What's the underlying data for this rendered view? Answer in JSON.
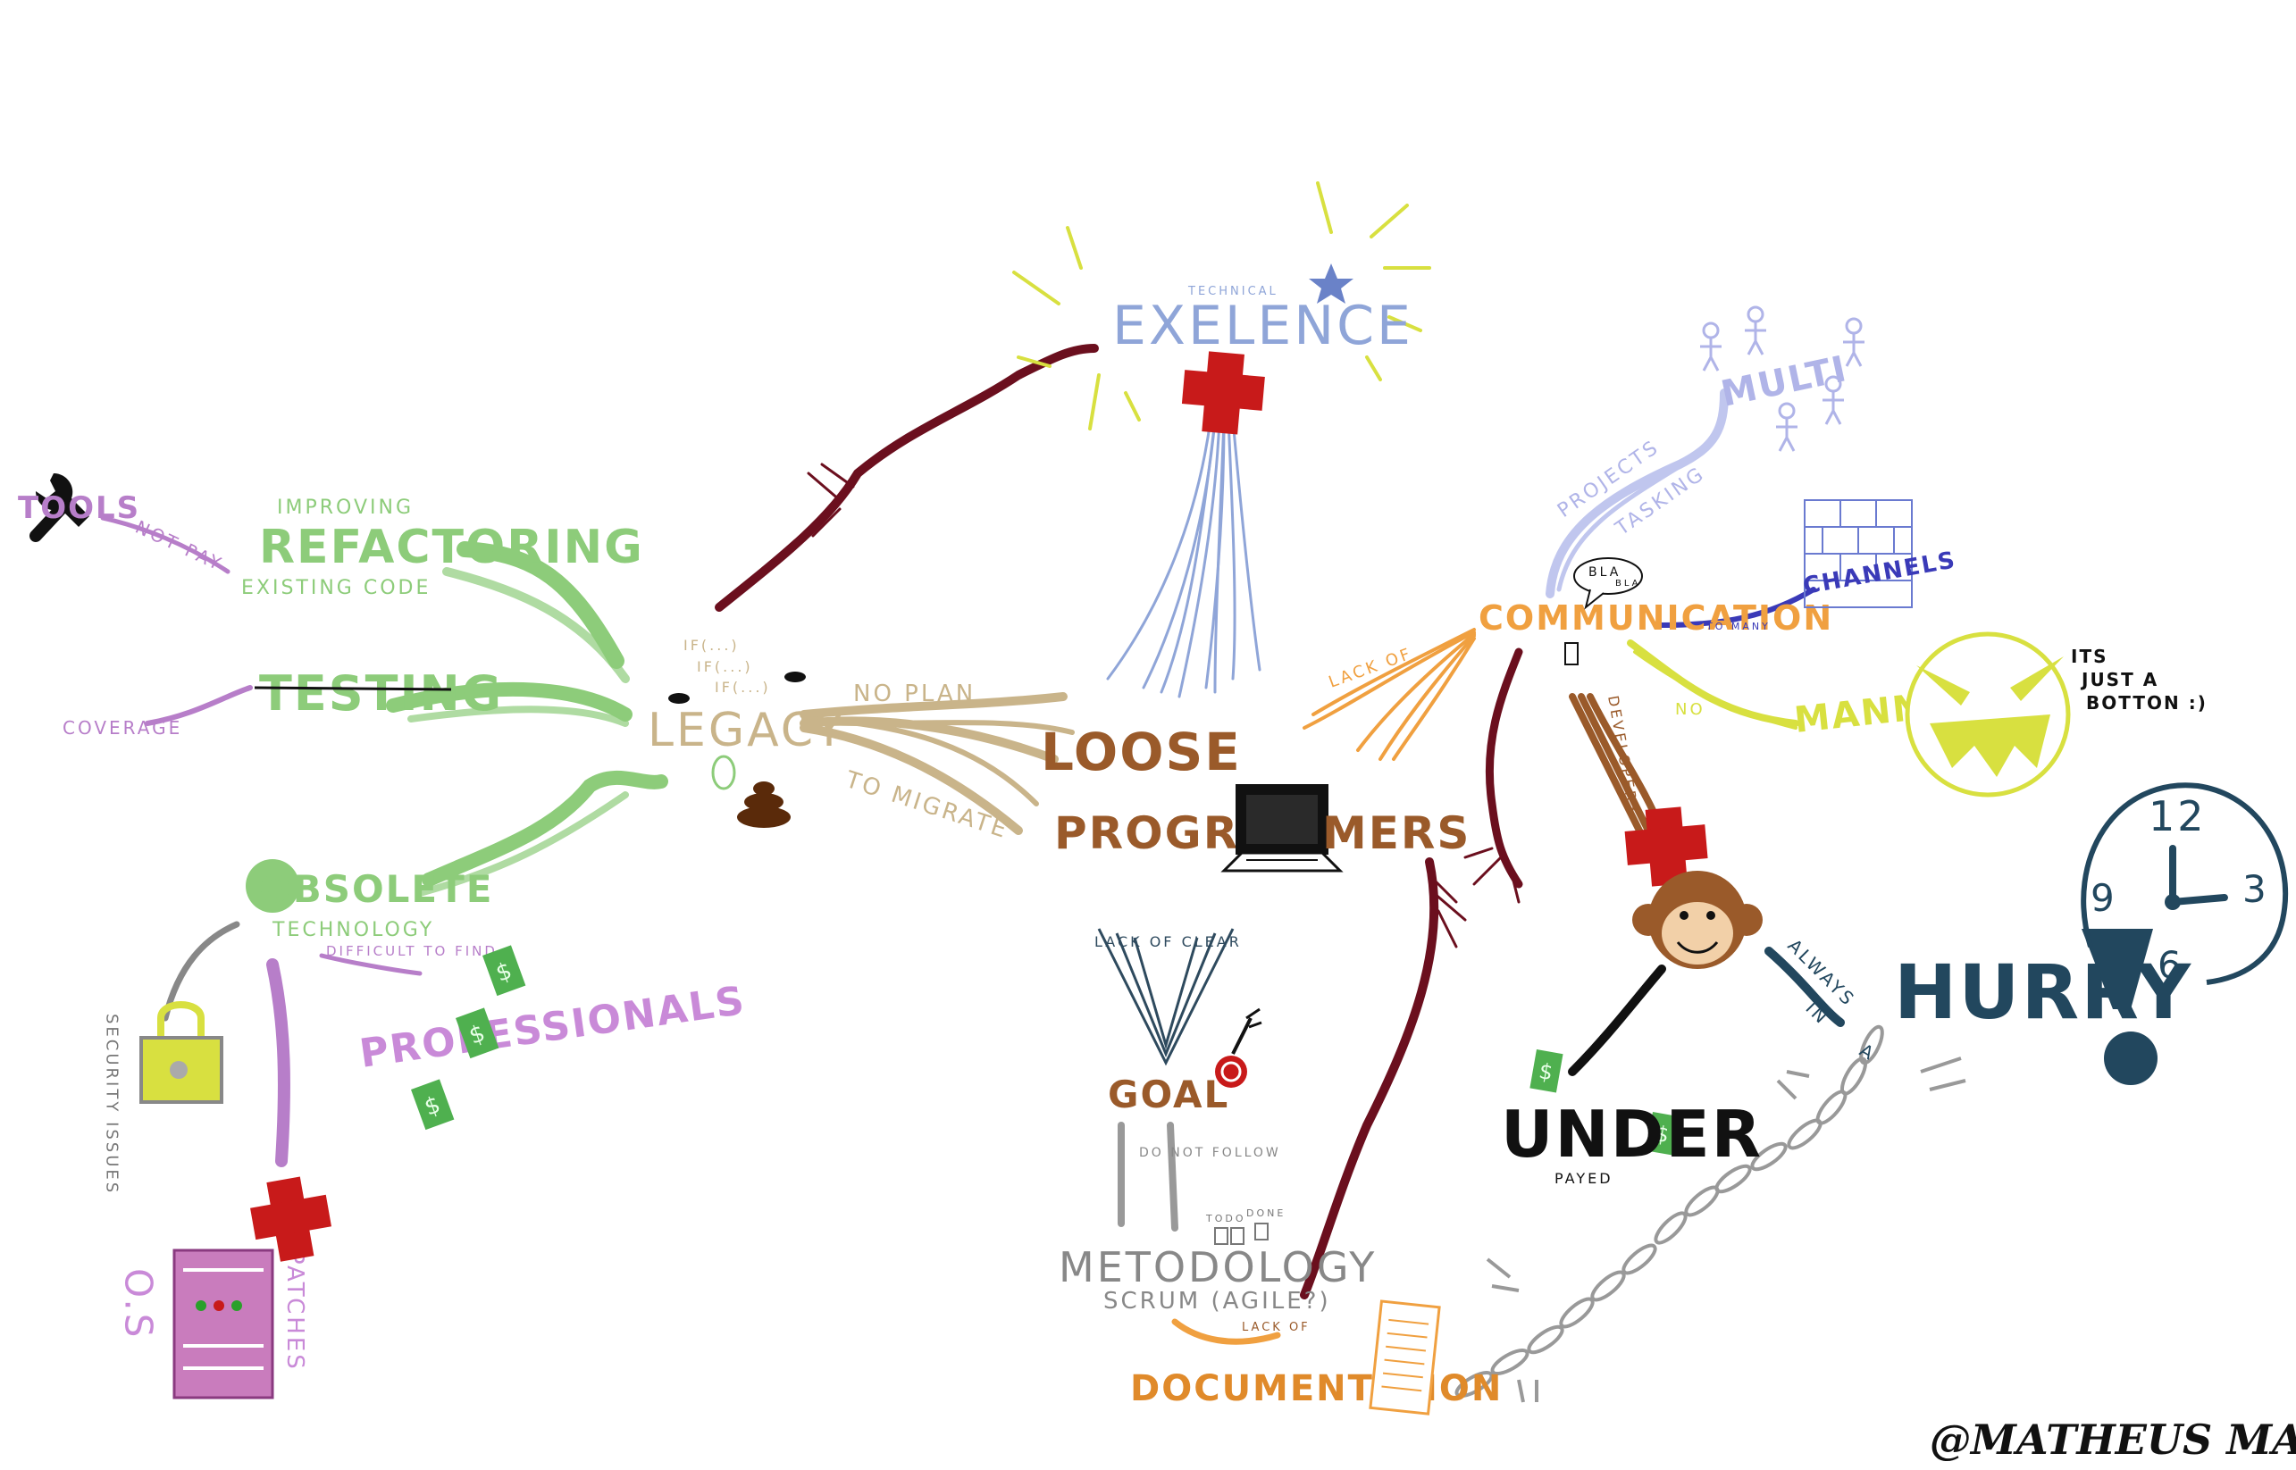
{
  "colors": {
    "legacy": "#c9b48a",
    "green": "#8dcc7a",
    "purple": "#b77ec9",
    "darkred": "#6b0f1e",
    "blue": "#8fa5d8",
    "orange": "#f0a040",
    "brown": "#9a5a2a",
    "yellow": "#d8e040",
    "navy": "#22475e",
    "violet": "#3a3ab8",
    "gray": "#888888",
    "red": "#c81a1a",
    "pink": "#d89ad0",
    "black": "#111111"
  },
  "labels": {
    "legacy": "LEGACY",
    "refactoring": "REFACTORING",
    "improving": "IMPROVING",
    "existing_code": "EXISTING   CODE",
    "tools": "TOOLS",
    "not_pay": "NOT PAY",
    "testing": "TESTING",
    "coverage": "COVERAGE",
    "obsolete": "OBSOLETE",
    "technology": "TECHNOLOGY",
    "difficult_to_find": "DIFFICULT TO FIND",
    "professionals": "PROFESSIONALS",
    "security_issues": "SECURITY ISSUES",
    "os": "O.S",
    "patches": "PATCHES",
    "if_lines": [
      "IF(...)",
      "IF(...)",
      "IF(...)"
    ],
    "no_plan": "NO PLAN",
    "to_migrate": "TO MIGRATE",
    "loose": "LOOSE",
    "program": "PROGRAM",
    "mers": "MERS",
    "technical": "TECHNICAL",
    "exelence": "EXELENCE",
    "lack_of_clear": "LACK OF CLEAR",
    "goal": "GOAL",
    "do_not_follow": "DO NOT FOLLOW",
    "todo": "TODO",
    "done": "DONE",
    "metodology": "METODOLOGY",
    "scrum": "SCRUM (AGILE?)",
    "lack_of_doc": "LACK OF",
    "documentation": "DOCUMENTATION",
    "communication": "COMMUNICATION",
    "lack_of_comm": "LACK OF",
    "projects": "PROJECTS",
    "tasking": "TASKING",
    "multi": "MULTI",
    "bla": "BLA",
    "bla2": "BLA",
    "channels": "CHANNELS",
    "to_many": "TO MANY",
    "no": "NO",
    "manners": "MANNERS",
    "its_just_a_button": [
      "ITS",
      "JUST A",
      "BOTTON :)"
    ],
    "developers": "DEVELOPERS",
    "always_in_a": [
      "ALWAYS",
      "IN",
      "A"
    ],
    "hurry": "HURRY",
    "under": "UNDER",
    "payed": "PAYED",
    "clock": {
      "n12": "12",
      "n3": "3",
      "n6": "6",
      "n9": "9"
    },
    "signature": "@MATHEUS MARABESI"
  }
}
